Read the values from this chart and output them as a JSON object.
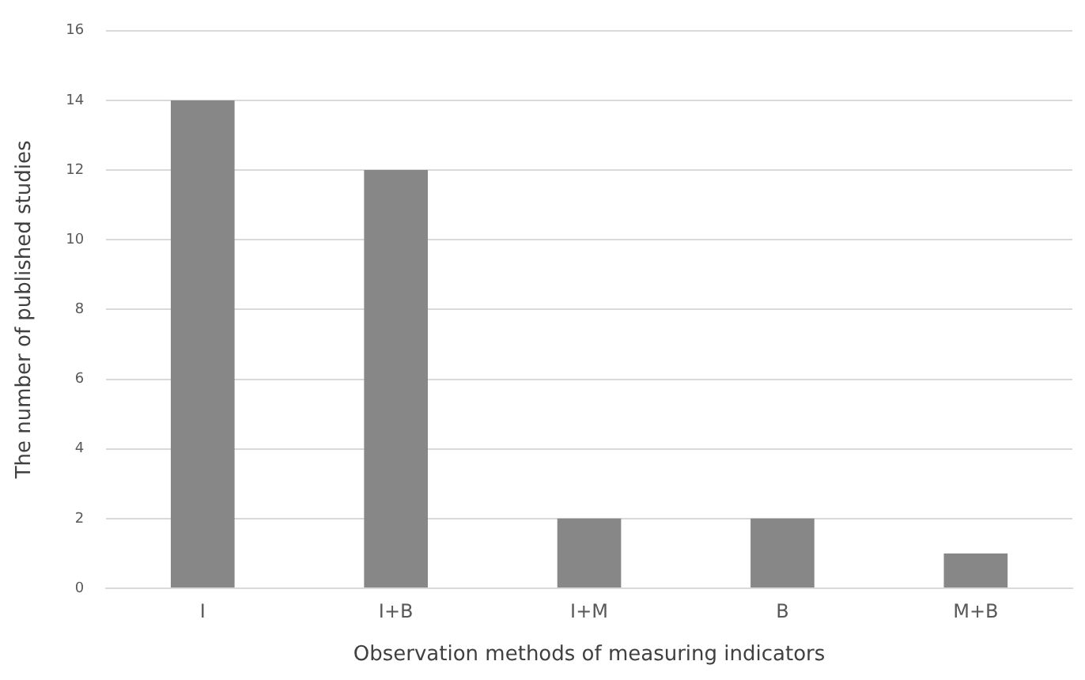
{
  "chart_data": {
    "type": "bar",
    "xlabel": "Observation methods of measuring indicators",
    "ylabel": "The number of published studies",
    "categories": [
      "I",
      "I+B",
      "I+M",
      "B",
      "M+B"
    ],
    "values": [
      14,
      12,
      2,
      2,
      1
    ],
    "color": "#878787",
    "ylim": [
      0,
      16
    ],
    "yticks": [
      0,
      2,
      4,
      6,
      8,
      10,
      12,
      14,
      16
    ],
    "grid": "y",
    "legend": false
  }
}
